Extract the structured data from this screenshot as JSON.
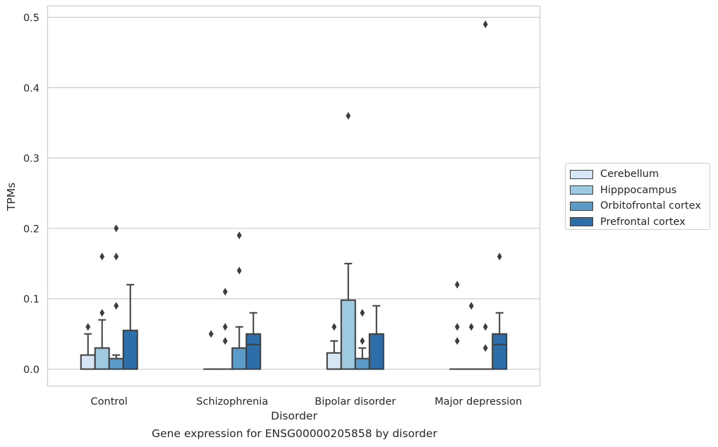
{
  "caption": "Gene expression for ENSG00000205858 by disorder",
  "chart_data": {
    "type": "box",
    "xlabel": "Disorder",
    "ylabel": "TPMs",
    "categories": [
      "Control",
      "Schizophrenia",
      "Bipolar disorder",
      "Major depression"
    ],
    "ylim": [
      -0.024,
      0.516
    ],
    "yticks": [
      0.0,
      0.1,
      0.2,
      0.3,
      0.4,
      0.5
    ],
    "ytick_labels": [
      "0.0",
      "0.1",
      "0.2",
      "0.3",
      "0.4",
      "0.5"
    ],
    "grid": "horizontal",
    "legend_position": "right",
    "series": [
      {
        "name": "Cerebellum",
        "color": "#d6e6f4",
        "boxes": [
          {
            "q1": 0.0,
            "median": 0.0,
            "q3": 0.02,
            "whisker_low": 0.0,
            "whisker_high": 0.05,
            "outliers": [
              0.06
            ]
          },
          {
            "q1": 0.0,
            "median": 0.0,
            "q3": 0.0,
            "whisker_low": 0.0,
            "whisker_high": 0.0,
            "outliers": [
              0.05
            ]
          },
          {
            "q1": 0.0,
            "median": 0.0,
            "q3": 0.023,
            "whisker_low": 0.0,
            "whisker_high": 0.04,
            "outliers": [
              0.06
            ]
          },
          {
            "q1": 0.0,
            "median": 0.0,
            "q3": 0.0,
            "whisker_low": 0.0,
            "whisker_high": 0.0,
            "outliers": [
              0.12,
              0.06,
              0.04
            ]
          }
        ]
      },
      {
        "name": "Hipppocampus",
        "color": "#9ecae1",
        "boxes": [
          {
            "q1": 0.0,
            "median": 0.0,
            "q3": 0.03,
            "whisker_low": 0.0,
            "whisker_high": 0.07,
            "outliers": [
              0.16,
              0.08
            ]
          },
          {
            "q1": 0.0,
            "median": 0.0,
            "q3": 0.0,
            "whisker_low": 0.0,
            "whisker_high": 0.0,
            "outliers": [
              0.11,
              0.06,
              0.04
            ]
          },
          {
            "q1": 0.0,
            "median": 0.0,
            "q3": 0.098,
            "whisker_low": 0.0,
            "whisker_high": 0.15,
            "outliers": [
              0.36
            ]
          },
          {
            "q1": 0.0,
            "median": 0.0,
            "q3": 0.0,
            "whisker_low": 0.0,
            "whisker_high": 0.0,
            "outliers": [
              0.09,
              0.06
            ]
          }
        ]
      },
      {
        "name": "Orbitofrontal cortex",
        "color": "#5a9bc9",
        "boxes": [
          {
            "q1": 0.0,
            "median": 0.0,
            "q3": 0.015,
            "whisker_low": 0.0,
            "whisker_high": 0.02,
            "outliers": [
              0.2,
              0.16,
              0.09
            ]
          },
          {
            "q1": 0.0,
            "median": 0.0,
            "q3": 0.03,
            "whisker_low": 0.0,
            "whisker_high": 0.06,
            "outliers": [
              0.19,
              0.14
            ]
          },
          {
            "q1": 0.0,
            "median": 0.0,
            "q3": 0.015,
            "whisker_low": 0.0,
            "whisker_high": 0.03,
            "outliers": [
              0.08,
              0.04
            ]
          },
          {
            "q1": 0.0,
            "median": 0.0,
            "q3": 0.0,
            "whisker_low": 0.0,
            "whisker_high": 0.0,
            "outliers": [
              0.49,
              0.06,
              0.03
            ]
          }
        ]
      },
      {
        "name": "Prefrontal cortex",
        "color": "#2b6eaa",
        "boxes": [
          {
            "q1": 0.0,
            "median": 0.0,
            "q3": 0.055,
            "whisker_low": 0.0,
            "whisker_high": 0.12,
            "outliers": []
          },
          {
            "q1": 0.0,
            "median": 0.035,
            "q3": 0.05,
            "whisker_low": 0.0,
            "whisker_high": 0.08,
            "outliers": []
          },
          {
            "q1": 0.0,
            "median": 0.0,
            "q3": 0.05,
            "whisker_low": 0.0,
            "whisker_high": 0.09,
            "outliers": []
          },
          {
            "q1": 0.0,
            "median": 0.035,
            "q3": 0.05,
            "whisker_low": 0.0,
            "whisker_high": 0.08,
            "outliers": [
              0.16
            ]
          }
        ]
      }
    ]
  }
}
